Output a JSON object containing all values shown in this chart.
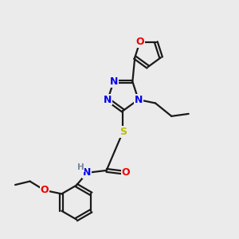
{
  "bg_color": "#ebebeb",
  "bond_color": "#1a1a1a",
  "bond_width": 1.6,
  "atom_colors": {
    "N": "#0000ee",
    "O": "#ee0000",
    "S": "#bbbb00",
    "H": "#778899",
    "C": "#1a1a1a"
  },
  "font_size_atom": 9,
  "font_size_h": 7.5,
  "xlim": [
    0,
    10
  ],
  "ylim": [
    0,
    10
  ]
}
